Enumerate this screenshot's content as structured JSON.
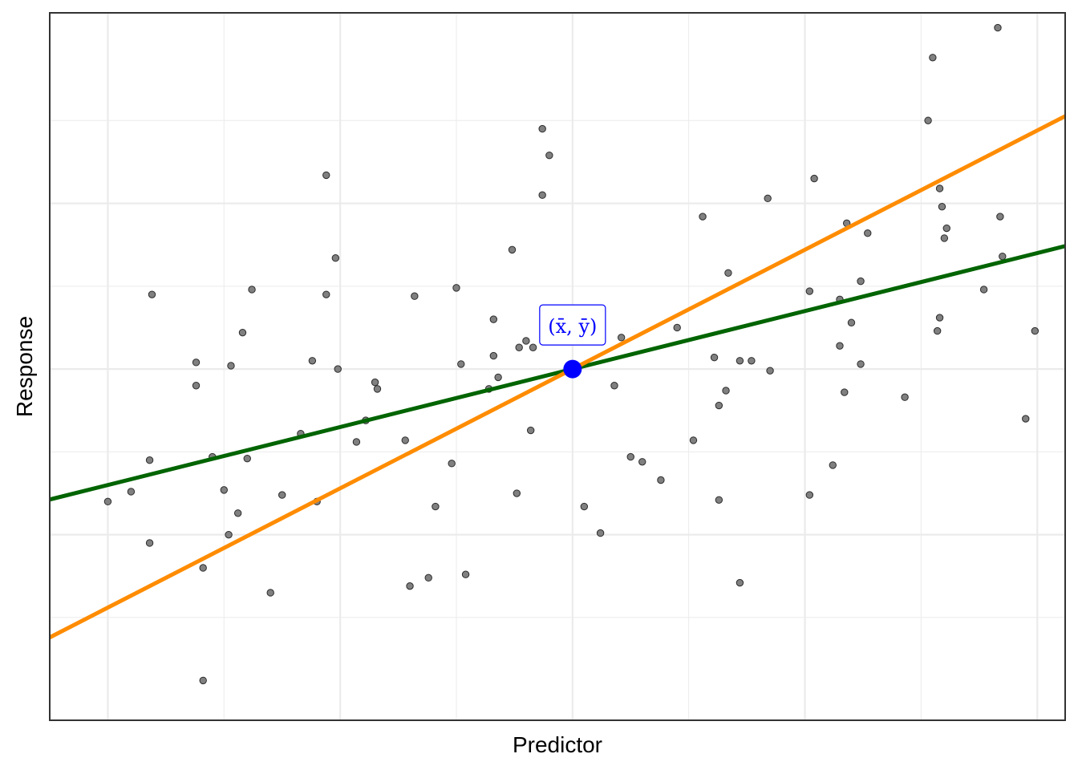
{
  "chart_data": {
    "type": "scatter",
    "title": "",
    "xlabel": "Predictor",
    "ylabel": "Response",
    "xlim": [
      -2.25,
      2.12
    ],
    "ylim": [
      -2.12,
      2.15
    ],
    "x_ticks_labeled": false,
    "y_ticks_labeled": false,
    "grid": true,
    "legend": "none",
    "points": [
      {
        "x": -2.0,
        "y": -0.8
      },
      {
        "x": -1.9,
        "y": -0.74
      },
      {
        "x": -1.82,
        "y": -0.55
      },
      {
        "x": -1.82,
        "y": -1.05
      },
      {
        "x": -1.81,
        "y": 0.45
      },
      {
        "x": -1.62,
        "y": 0.04
      },
      {
        "x": -1.62,
        "y": -0.1
      },
      {
        "x": -1.59,
        "y": -1.2
      },
      {
        "x": -1.59,
        "y": -1.88
      },
      {
        "x": -1.55,
        "y": -0.53
      },
      {
        "x": -1.5,
        "y": -0.73
      },
      {
        "x": -1.48,
        "y": -1.0
      },
      {
        "x": -1.47,
        "y": 0.02
      },
      {
        "x": -1.44,
        "y": -0.87
      },
      {
        "x": -1.42,
        "y": 0.22
      },
      {
        "x": -1.4,
        "y": -0.54
      },
      {
        "x": -1.38,
        "y": 0.48
      },
      {
        "x": -1.3,
        "y": -1.35
      },
      {
        "x": -1.25,
        "y": -0.76
      },
      {
        "x": -1.17,
        "y": -0.39
      },
      {
        "x": -1.12,
        "y": 0.05
      },
      {
        "x": -1.1,
        "y": -0.8
      },
      {
        "x": -1.06,
        "y": 1.17
      },
      {
        "x": -1.06,
        "y": 0.45
      },
      {
        "x": -1.02,
        "y": 0.67
      },
      {
        "x": -1.01,
        "y": 0.0
      },
      {
        "x": -0.93,
        "y": -0.44
      },
      {
        "x": -0.89,
        "y": -0.31
      },
      {
        "x": -0.85,
        "y": -0.08
      },
      {
        "x": -0.84,
        "y": -0.12
      },
      {
        "x": -0.72,
        "y": -0.43
      },
      {
        "x": -0.7,
        "y": -1.31
      },
      {
        "x": -0.68,
        "y": 0.44
      },
      {
        "x": -0.62,
        "y": -1.26
      },
      {
        "x": -0.59,
        "y": -0.83
      },
      {
        "x": -0.52,
        "y": -0.57
      },
      {
        "x": -0.5,
        "y": 0.49
      },
      {
        "x": -0.48,
        "y": 0.03
      },
      {
        "x": -0.46,
        "y": -1.24
      },
      {
        "x": -0.36,
        "y": -0.12
      },
      {
        "x": -0.34,
        "y": 0.08
      },
      {
        "x": -0.34,
        "y": 0.3
      },
      {
        "x": -0.32,
        "y": -0.05
      },
      {
        "x": -0.26,
        "y": 0.72
      },
      {
        "x": -0.24,
        "y": -0.75
      },
      {
        "x": -0.23,
        "y": 0.13
      },
      {
        "x": -0.2,
        "y": 0.17
      },
      {
        "x": -0.18,
        "y": -0.37
      },
      {
        "x": -0.17,
        "y": 0.13
      },
      {
        "x": -0.13,
        "y": 1.05
      },
      {
        "x": -0.13,
        "y": 1.45
      },
      {
        "x": -0.1,
        "y": 1.29
      },
      {
        "x": 0.05,
        "y": -0.83
      },
      {
        "x": 0.12,
        "y": -0.99
      },
      {
        "x": 0.18,
        "y": -0.1
      },
      {
        "x": 0.21,
        "y": 0.19
      },
      {
        "x": 0.25,
        "y": -0.53
      },
      {
        "x": 0.3,
        "y": -0.56
      },
      {
        "x": 0.38,
        "y": -0.67
      },
      {
        "x": 0.45,
        "y": 0.25
      },
      {
        "x": 0.52,
        "y": -0.43
      },
      {
        "x": 0.56,
        "y": 0.92
      },
      {
        "x": 0.61,
        "y": 0.07
      },
      {
        "x": 0.63,
        "y": -0.22
      },
      {
        "x": 0.63,
        "y": -0.79
      },
      {
        "x": 0.66,
        "y": -0.13
      },
      {
        "x": 0.67,
        "y": 0.58
      },
      {
        "x": 0.72,
        "y": -1.29
      },
      {
        "x": 0.72,
        "y": 0.05
      },
      {
        "x": 0.77,
        "y": 0.05
      },
      {
        "x": 0.84,
        "y": 1.03
      },
      {
        "x": 0.85,
        "y": -0.01
      },
      {
        "x": 1.02,
        "y": -0.76
      },
      {
        "x": 1.02,
        "y": 0.47
      },
      {
        "x": 1.04,
        "y": 1.15
      },
      {
        "x": 1.12,
        "y": -0.58
      },
      {
        "x": 1.15,
        "y": 0.42
      },
      {
        "x": 1.15,
        "y": 0.14
      },
      {
        "x": 1.17,
        "y": -0.14
      },
      {
        "x": 1.18,
        "y": 0.88
      },
      {
        "x": 1.2,
        "y": 0.28
      },
      {
        "x": 1.24,
        "y": 0.53
      },
      {
        "x": 1.24,
        "y": 0.03
      },
      {
        "x": 1.27,
        "y": 0.82
      },
      {
        "x": 1.43,
        "y": -0.17
      },
      {
        "x": 1.53,
        "y": 1.5
      },
      {
        "x": 1.55,
        "y": 1.88
      },
      {
        "x": 1.57,
        "y": 0.23
      },
      {
        "x": 1.58,
        "y": 0.31
      },
      {
        "x": 1.58,
        "y": 1.09
      },
      {
        "x": 1.59,
        "y": 0.98
      },
      {
        "x": 1.6,
        "y": 0.79
      },
      {
        "x": 1.61,
        "y": 0.85
      },
      {
        "x": 1.77,
        "y": 0.48
      },
      {
        "x": 1.83,
        "y": 2.06
      },
      {
        "x": 1.84,
        "y": 0.92
      },
      {
        "x": 1.85,
        "y": 0.68
      },
      {
        "x": 1.95,
        "y": -0.3
      },
      {
        "x": 1.99,
        "y": 0.23
      }
    ],
    "lines": [
      {
        "color": "#006400",
        "slope": 0.35,
        "intercept": 0.0
      },
      {
        "color": "#ff8c00",
        "slope": 0.72,
        "intercept": 0.0
      }
    ],
    "mean_point": {
      "x": 0.0,
      "y": 0.0,
      "label": "(x̄, ȳ)",
      "color": "#0000ff"
    }
  }
}
